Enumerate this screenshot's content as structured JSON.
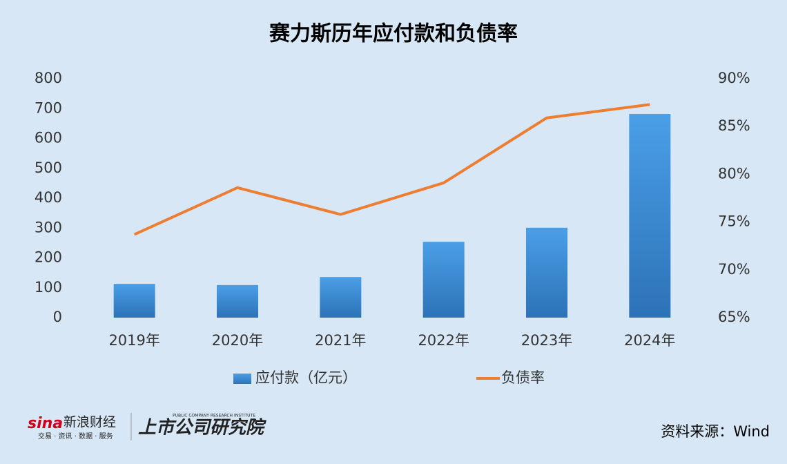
{
  "chart_data": {
    "type": "bar",
    "title": "赛力斯历年应付款和负债率",
    "categories": [
      "2019年",
      "2020年",
      "2021年",
      "2022年",
      "2023年",
      "2024年"
    ],
    "series": [
      {
        "name": "应付款（亿元）",
        "type": "bar",
        "color": "#3a8ad6",
        "values": [
          113,
          109,
          136,
          254,
          301,
          682
        ]
      },
      {
        "name": "负债率",
        "type": "line",
        "color": "#ed7d31",
        "axis": "y2",
        "values": [
          73.7,
          78.6,
          75.8,
          79.1,
          85.9,
          87.3
        ]
      }
    ],
    "ylim": [
      0,
      800
    ],
    "yticks": [
      0,
      100,
      200,
      300,
      400,
      500,
      600,
      700,
      800
    ],
    "y2lim": [
      65,
      90
    ],
    "y2ticks": [
      {
        "value": 65,
        "label": "65%"
      },
      {
        "value": 70,
        "label": "70%"
      },
      {
        "value": 75,
        "label": "75%"
      },
      {
        "value": 80,
        "label": "80%"
      },
      {
        "value": 85,
        "label": "85%"
      },
      {
        "value": 90,
        "label": "90%"
      }
    ],
    "grid": false,
    "legend": "bottom"
  },
  "footer": {
    "source": "资料来源：Wind",
    "logo_sina": "sina",
    "logo_name": "新浪财经",
    "logo_tagline": "交易 · 资讯 · 数据 · 服务",
    "logo_institute": "上市公司研究院",
    "logo_institute_en": "PUBLIC COMPANY RESEARCH INSTITUTE"
  }
}
